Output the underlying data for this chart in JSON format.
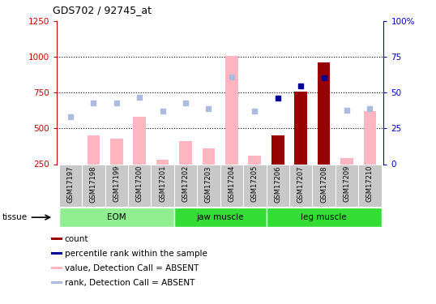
{
  "title": "GDS702 / 92745_at",
  "samples": [
    "GSM17197",
    "GSM17198",
    "GSM17199",
    "GSM17200",
    "GSM17201",
    "GSM17202",
    "GSM17203",
    "GSM17204",
    "GSM17205",
    "GSM17206",
    "GSM17207",
    "GSM17208",
    "GSM17209",
    "GSM17210"
  ],
  "value_absent": [
    250,
    450,
    430,
    580,
    280,
    410,
    360,
    1010,
    310,
    null,
    null,
    null,
    290,
    620
  ],
  "rank_absent": [
    580,
    680,
    680,
    720,
    620,
    680,
    640,
    860,
    620,
    null,
    null,
    null,
    630,
    640
  ],
  "count_present": [
    null,
    null,
    null,
    null,
    null,
    null,
    null,
    null,
    null,
    450,
    760,
    960,
    null,
    null
  ],
  "percentile_present": [
    null,
    null,
    null,
    null,
    null,
    null,
    null,
    null,
    null,
    710,
    800,
    855,
    null,
    null
  ],
  "ylim_left": [
    250,
    1250
  ],
  "ylim_right": [
    0,
    100
  ],
  "yticks_left": [
    250,
    500,
    750,
    1000,
    1250
  ],
  "yticks_right": [
    0,
    25,
    50,
    75,
    100
  ],
  "groups": [
    {
      "name": "EOM",
      "indices": [
        0,
        1,
        2,
        3,
        4
      ],
      "color": "#90EE90"
    },
    {
      "name": "jaw muscle",
      "indices": [
        5,
        6,
        7,
        8
      ],
      "color": "#2ECC40"
    },
    {
      "name": "leg muscle",
      "indices": [
        9,
        10,
        11,
        12,
        13
      ],
      "color": "#2ECC40"
    }
  ],
  "colors": {
    "count": "#990000",
    "percentile": "#000099",
    "value_absent": "#FFB6C1",
    "rank_absent": "#AABBDD",
    "axis_left": "#CC0000",
    "axis_right": "#0000CC",
    "bg_xlabel": "#C8C8C8",
    "grid": "black"
  },
  "legend": [
    {
      "color": "#990000",
      "label": "count"
    },
    {
      "color": "#000099",
      "label": "percentile rank within the sample"
    },
    {
      "color": "#FFB6C1",
      "label": "value, Detection Call = ABSENT"
    },
    {
      "color": "#AABBDD",
      "label": "rank, Detection Call = ABSENT"
    }
  ]
}
